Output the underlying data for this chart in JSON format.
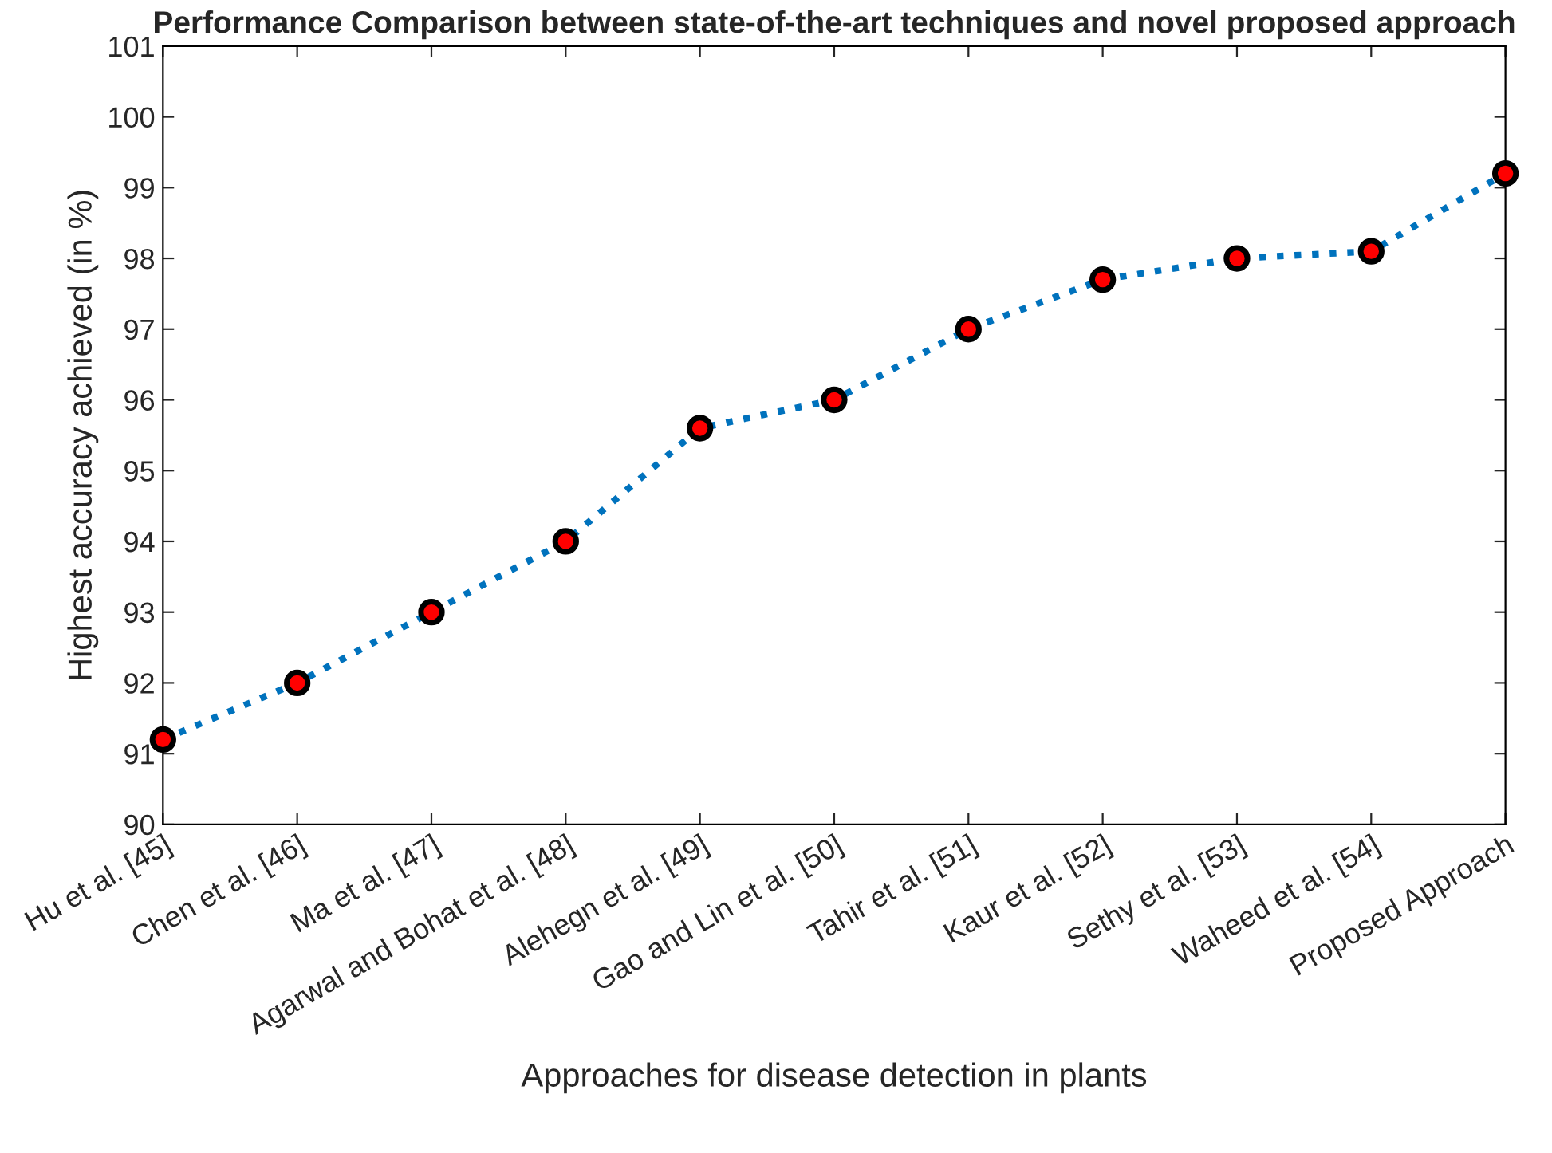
{
  "chart_data": {
    "type": "line",
    "title": "Performance Comparison between state-of-the-art techniques and novel proposed approach",
    "xlabel": "Approaches for disease detection in plants",
    "ylabel": "Highest accuracy achieved (in %)",
    "categories": [
      "Hu et al. [45]",
      "Chen et al. [46]",
      "Ma et al. [47]",
      "Agarwal and Bohat et al. [48]",
      "Alehegn et al. [49]",
      "Gao and Lin et al. [50]",
      "Tahir et al. [51]",
      "Kaur et al. [52]",
      "Sethy et al. [53]",
      "Waheed et al. [54]",
      "Proposed Approach"
    ],
    "series": [
      {
        "color": "#0072bd",
        "values": [
          91.2,
          92.0,
          93.0,
          94.0,
          95.6,
          96.0,
          97.0,
          97.7,
          98.0,
          98.1,
          99.2
        ],
        "colors": [
          "#ff0000",
          "#ff0000",
          "#ff0000",
          "#ff0000",
          "#ff0000",
          "#ff0000",
          "#ff0000",
          "#ff0000",
          "#ff0000",
          "#ff0000",
          "#ff0000"
        ]
      }
    ],
    "ylim": [
      90,
      101
    ],
    "yticks": [
      90,
      91,
      92,
      93,
      94,
      95,
      96,
      97,
      98,
      99,
      100,
      101
    ],
    "marker": "circle",
    "line_style": "dotted",
    "grid": false
  }
}
